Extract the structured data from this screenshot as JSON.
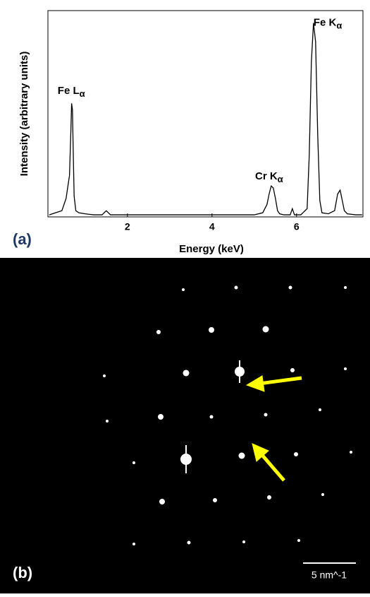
{
  "chart_data": {
    "type": "line",
    "xlabel": "Energy (keV)",
    "ylabel": "Intensity (arbitrary units)",
    "x": [
      0.15,
      0.3,
      0.45,
      0.55,
      0.6,
      0.63,
      0.66,
      0.68,
      0.7,
      0.72,
      0.74,
      0.78,
      0.85,
      1.0,
      1.2,
      1.4,
      1.5,
      1.55,
      1.6,
      1.8,
      2.0,
      2.5,
      3.0,
      3.5,
      4.0,
      4.5,
      5.0,
      5.2,
      5.3,
      5.35,
      5.4,
      5.45,
      5.5,
      5.55,
      5.6,
      5.7,
      5.85,
      5.9,
      5.95,
      6.1,
      6.25,
      6.3,
      6.35,
      6.4,
      6.45,
      6.5,
      6.55,
      6.6,
      6.75,
      6.9,
      6.97,
      7.03,
      7.08,
      7.13,
      7.2,
      7.4,
      7.55
    ],
    "series": [
      {
        "color": "#000000",
        "values": [
          1,
          2,
          3,
          9,
          16,
          20,
          40,
          55,
          52,
          30,
          10,
          3,
          2,
          1.5,
          1,
          1,
          3,
          2,
          1,
          1,
          1,
          1,
          1,
          1,
          1,
          1,
          1,
          2,
          6,
          11,
          15,
          14,
          9,
          3,
          1.5,
          1,
          1,
          4,
          1,
          1,
          4,
          30,
          75,
          94,
          85,
          40,
          8,
          2,
          1.5,
          3,
          11,
          13,
          8,
          3,
          1.5,
          1,
          1
        ]
      }
    ],
    "xlim": [
      0.12,
      7.57
    ],
    "ylim": [
      0,
      100
    ],
    "xticks": [
      2,
      4,
      6
    ],
    "annotations": [
      {
        "label": "Fe L",
        "subscript": "α",
        "x": 0.35,
        "y": 61
      },
      {
        "label": "Cr K",
        "subscript": "α",
        "x": 5.02,
        "y": 19.5
      },
      {
        "label": "Fe K",
        "subscript": "α",
        "x": 6.4,
        "y": 94
      }
    ]
  },
  "panel_labels": [
    "(a)",
    "(b)"
  ],
  "scale_bar": "5 nm^-1"
}
